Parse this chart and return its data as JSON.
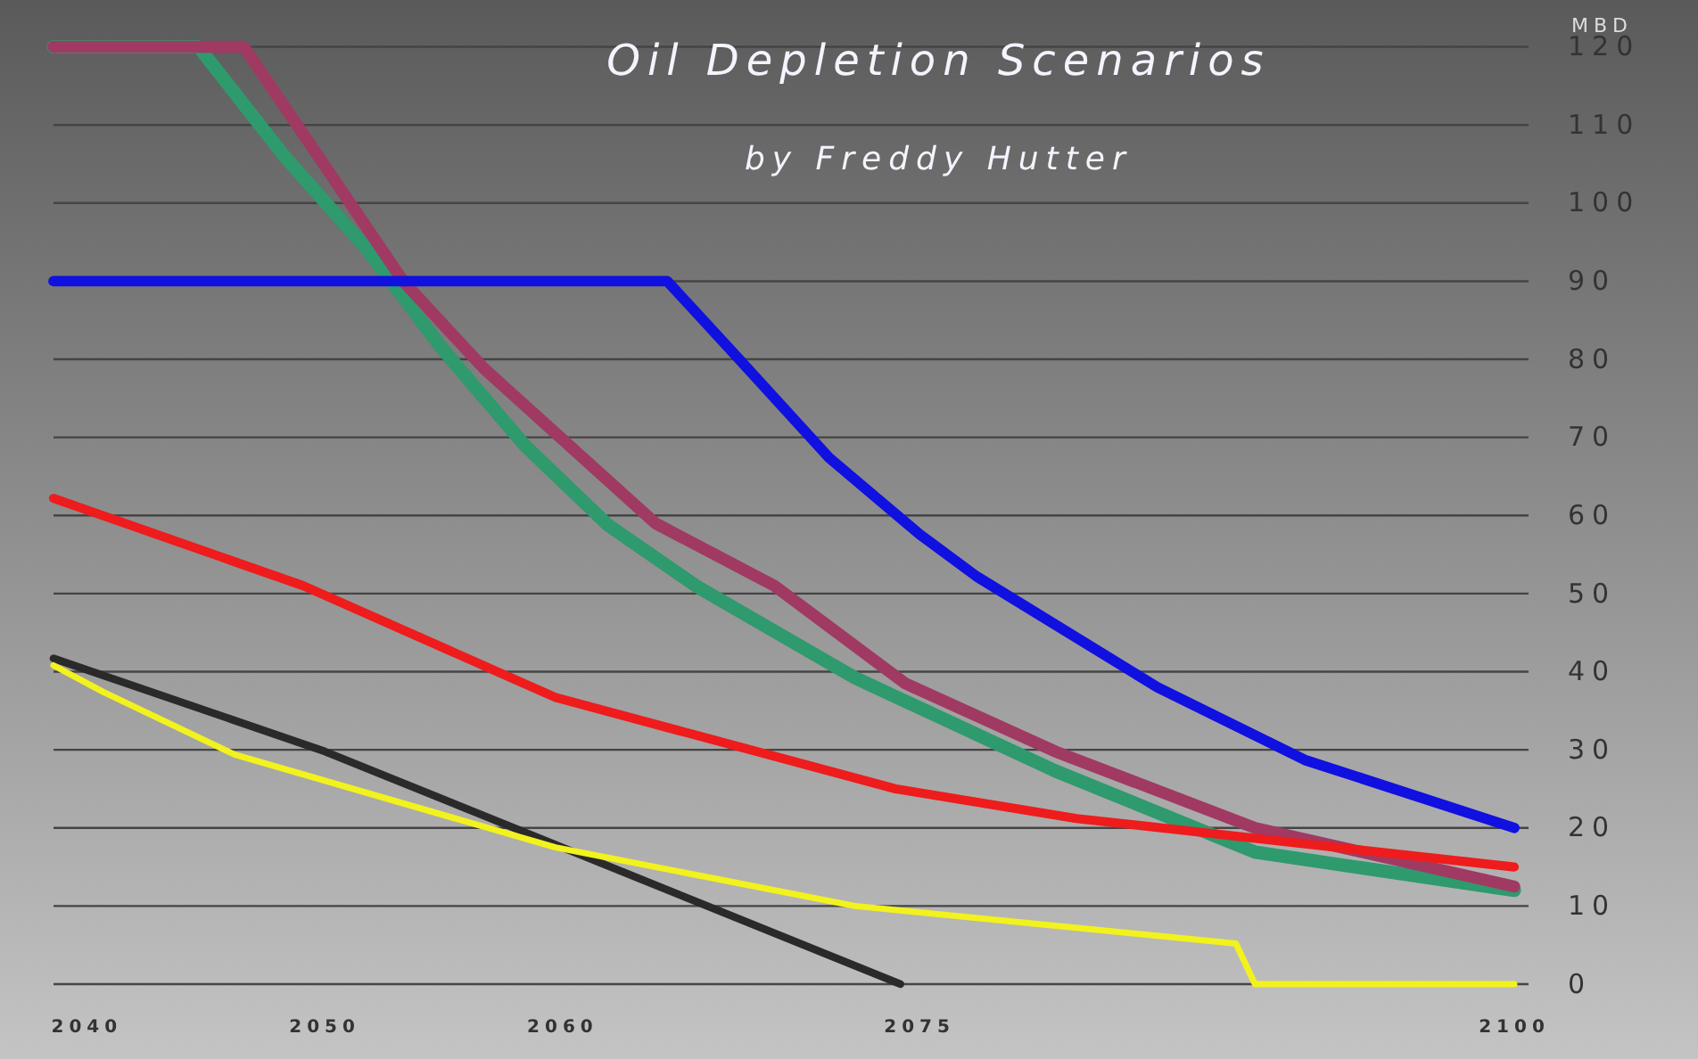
{
  "chart_data": {
    "type": "line",
    "title": "Oil Depletion Scenarios",
    "subtitle": "by Freddy Hutter",
    "ylabel": "MBD",
    "xlim": [
      2038.6,
      2100.6
    ],
    "xticks": [
      2040,
      2050,
      2060,
      2075,
      2100
    ],
    "ylim": [
      0,
      126
    ],
    "yticks": [
      0,
      10,
      20,
      30,
      40,
      50,
      60,
      70,
      80,
      90,
      100,
      110,
      120
    ],
    "grid": "y",
    "line_style": "solid",
    "marker": "none",
    "series": [
      {
        "color": "#2e9a6e",
        "x": [
          2038.6,
          2044.7,
          2048.3,
          2051.8,
          2054.9,
          2058.4,
          2061.9,
          2065.6,
          2072.3,
          2080.7,
          2089.1,
          2100
        ],
        "values": [
          120,
          120,
          106,
          94,
          81.5,
          69,
          58.8,
          51,
          39.2,
          27.3,
          16.9,
          12
        ]
      },
      {
        "color": "#a03a62",
        "x": [
          2038.6,
          2046.6,
          2053.3,
          2056.7,
          2063.9,
          2068.9,
          2074.4,
          2080.7,
          2089.1,
          2100
        ],
        "values": [
          120,
          120,
          90,
          78.8,
          59,
          51,
          38.5,
          29.8,
          20,
          12.5
        ]
      },
      {
        "color": "#1010e0",
        "x": [
          2038.6,
          2064.4,
          2067.3,
          2071.2,
          2075,
          2077.4,
          2085,
          2091.2,
          2100
        ],
        "values": [
          90,
          90,
          80.4,
          67.4,
          57.6,
          52.2,
          38,
          28.7,
          20
        ]
      },
      {
        "color": "#ee1c1c",
        "x": [
          2038.6,
          2049.1,
          2059.7,
          2074,
          2081.6,
          2100
        ],
        "values": [
          62.2,
          51,
          36.7,
          25,
          21.2,
          15
        ]
      },
      {
        "color": "#2a2a2a",
        "x": [
          2038.6,
          2050,
          2074.2
        ],
        "values": [
          41.7,
          29.8,
          0
        ]
      },
      {
        "color": "#f2f21e",
        "x": [
          2038.6,
          2040.7,
          2046.2,
          2059.7,
          2072.3,
          2088.3,
          2089.1,
          2100
        ],
        "values": [
          40.8,
          37.4,
          29.4,
          17.5,
          10,
          5.2,
          0,
          0
        ]
      }
    ]
  }
}
